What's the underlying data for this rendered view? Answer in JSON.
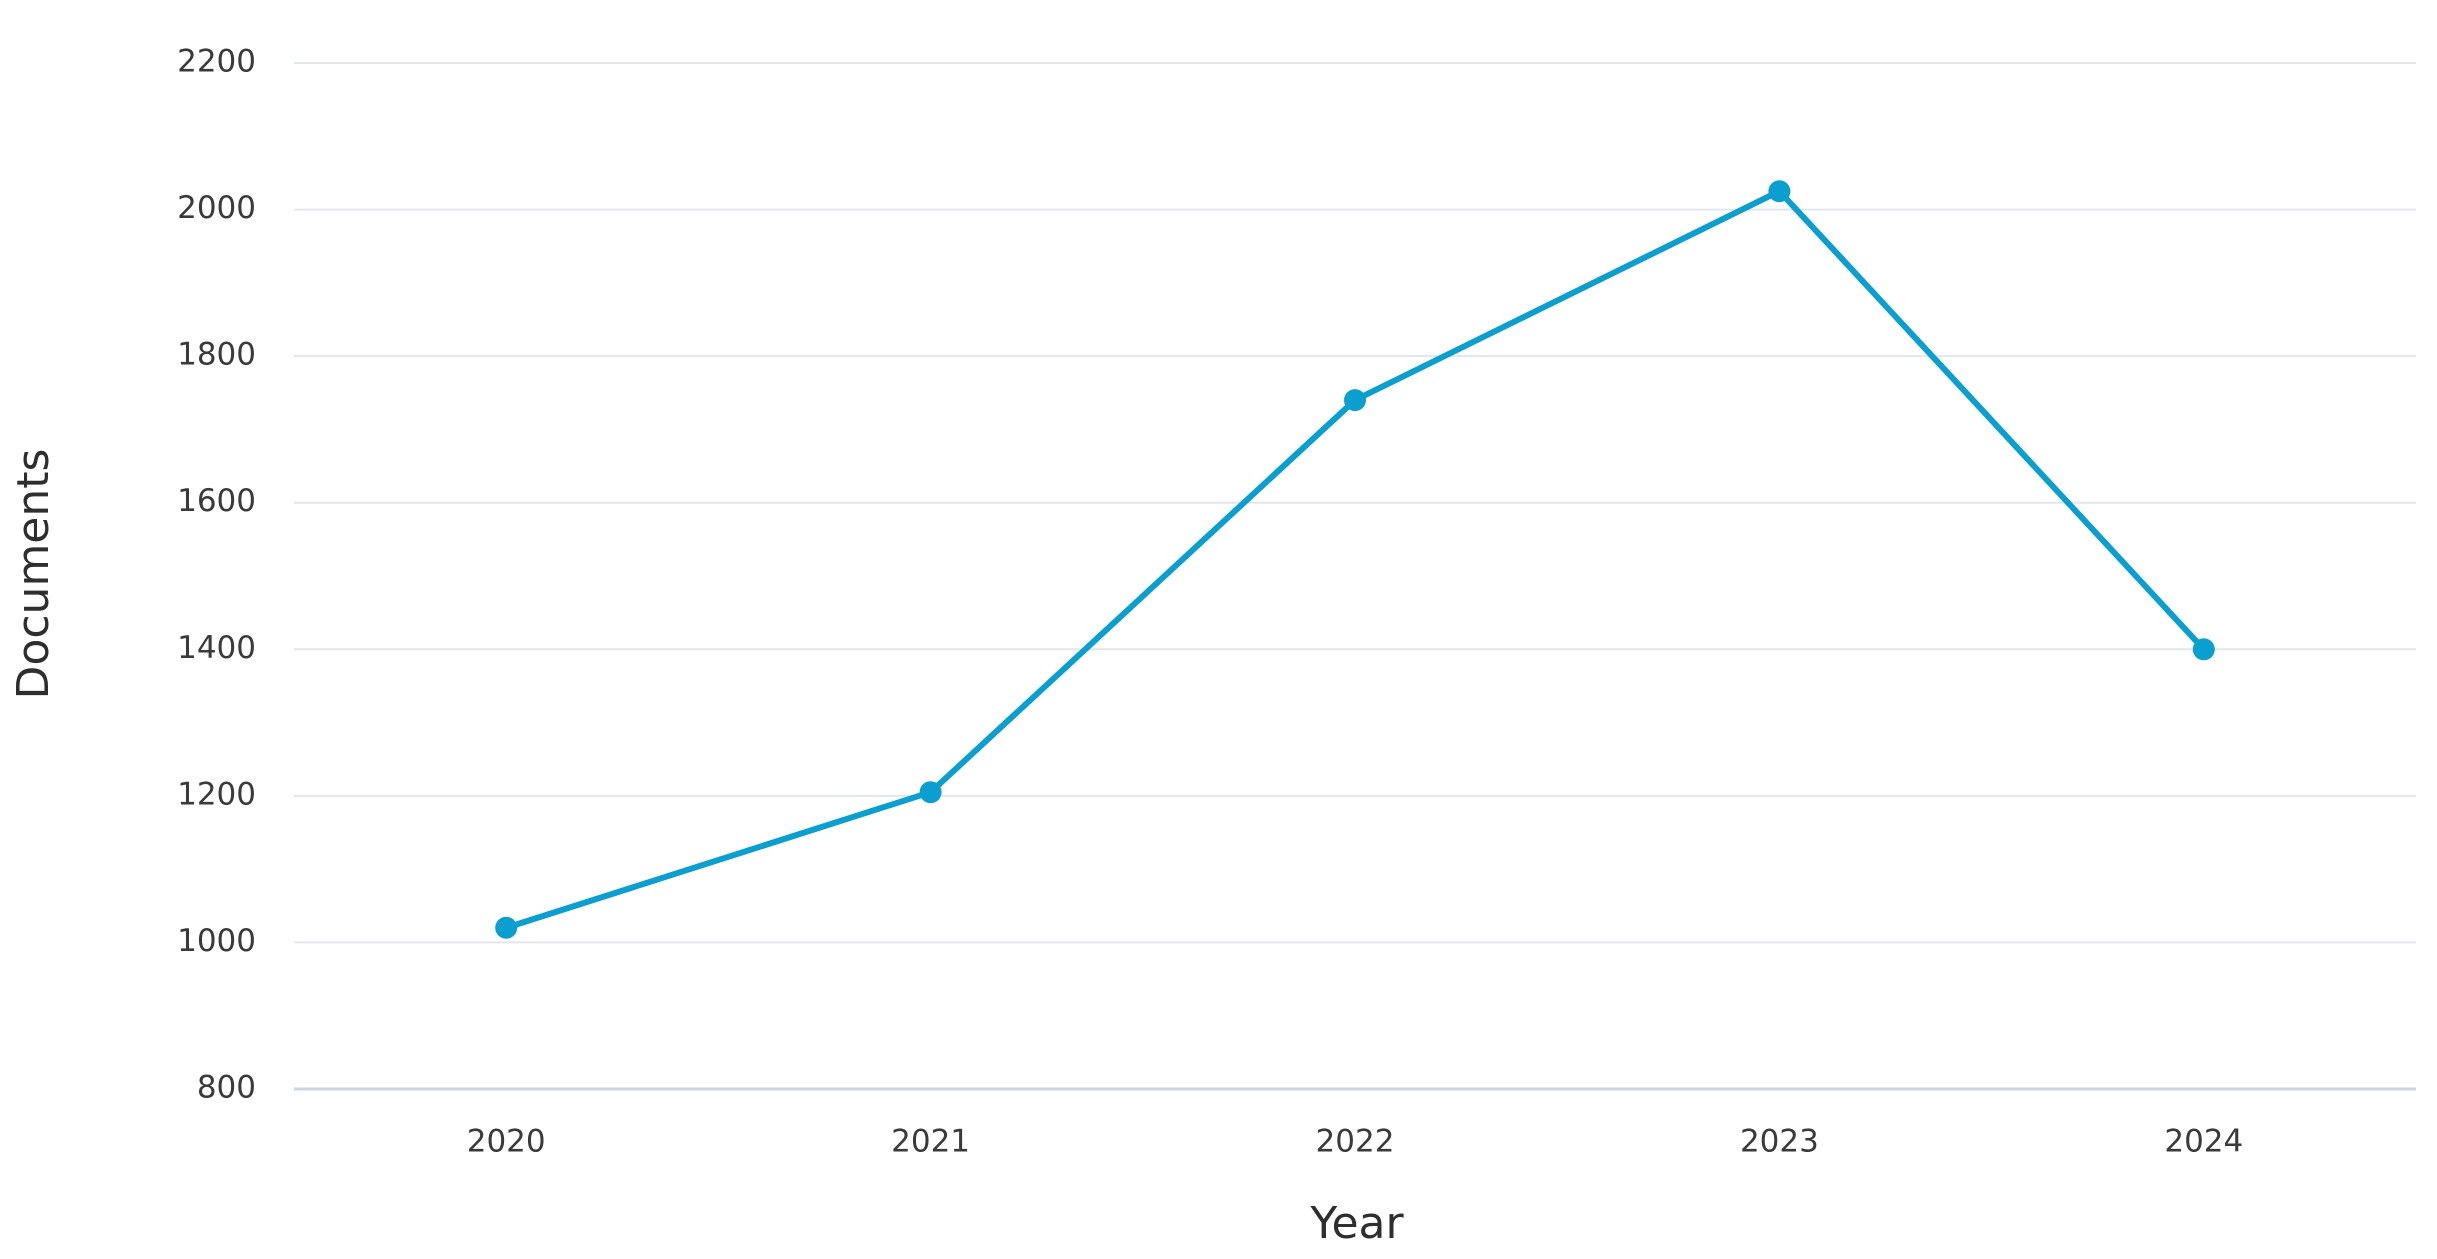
{
  "chart_data": {
    "type": "line",
    "x_label": "Year",
    "y_label": "Documents",
    "categories": [
      "2020",
      "2021",
      "2022",
      "2023",
      "2024"
    ],
    "series": [
      {
        "name": "Documents",
        "color": "#0a9fcf",
        "values": [
          1020,
          1205,
          1740,
          2025,
          1400
        ]
      }
    ],
    "ylim": [
      800,
      2200
    ],
    "yticks": [
      800,
      1000,
      1200,
      1400,
      1600,
      1800,
      2000,
      2200
    ],
    "grid": true
  }
}
